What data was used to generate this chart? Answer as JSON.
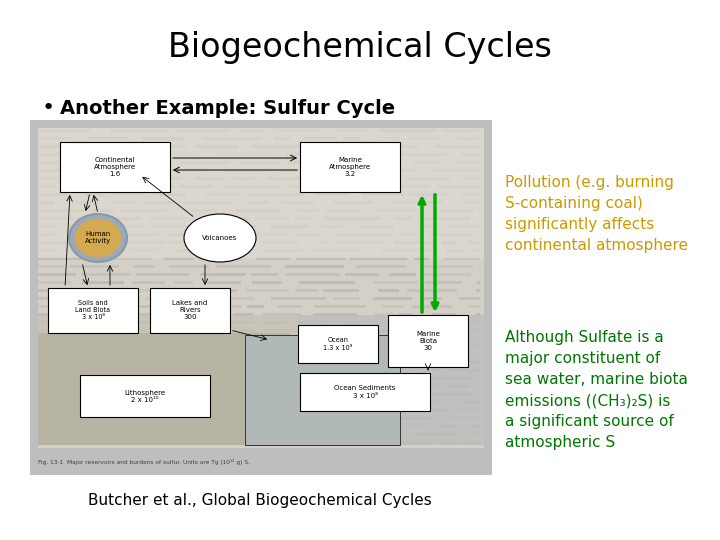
{
  "title": "Biogeochemical Cycles",
  "title_fontsize": 24,
  "title_color": "#000000",
  "bullet_text": "Another Example: Sulfur Cycle",
  "bullet_fontsize": 14,
  "annotation1_text": "Pollution (e.g. burning\nS-containing coal)\nsignificantly affects\ncontinental atmosphere",
  "annotation1_color": "#CC9900",
  "annotation1_fontsize": 11,
  "annotation2_text": "Although Sulfate is a\nmajor constituent of\nsea water, marine biota\nemissions ((CH₃)₂S) is\na significant source of\natmospheric S",
  "annotation2_color": "#007700",
  "annotation2_fontsize": 11,
  "caption_text": "Butcher et al., Global Biogeochemical Cycles",
  "caption_fontsize": 11,
  "bg_color": "#FFFFFF"
}
